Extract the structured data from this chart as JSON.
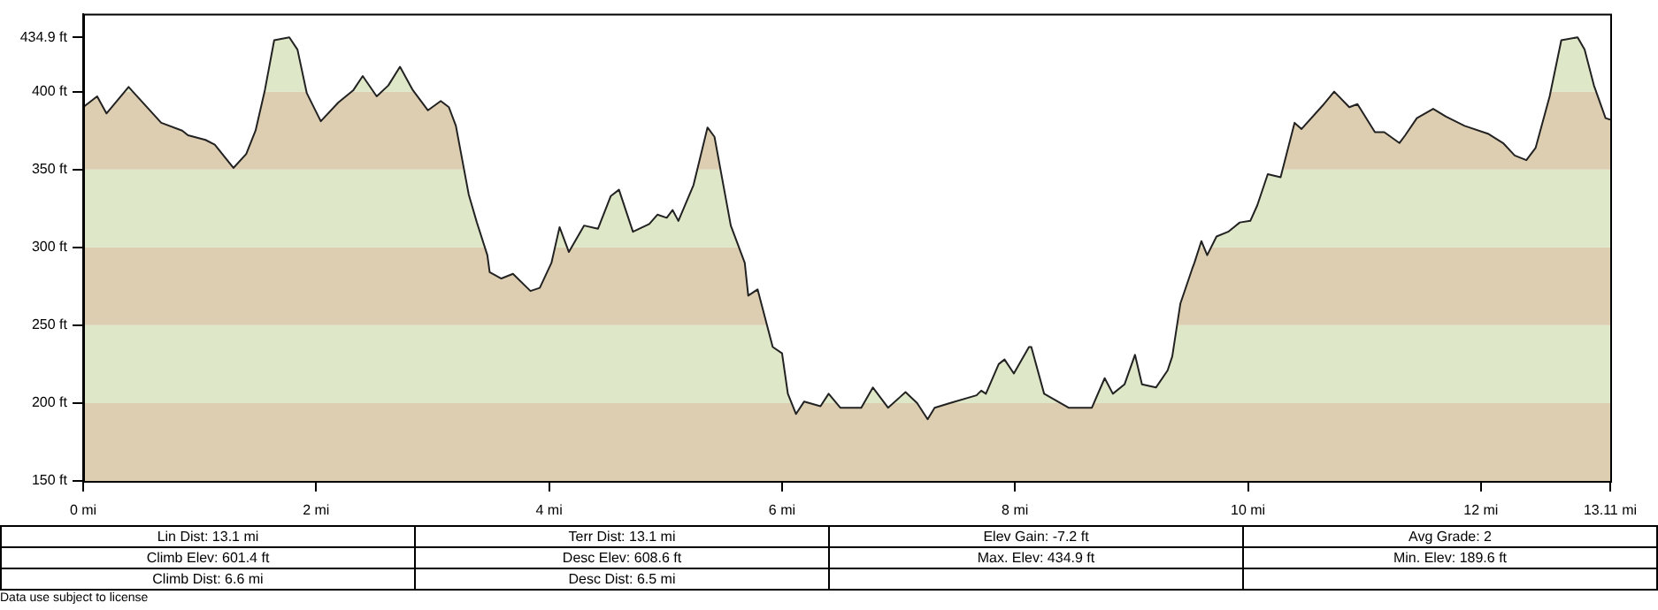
{
  "chart_data": {
    "type": "area",
    "x": [
      0,
      0.12,
      0.2,
      0.39,
      0.67,
      0.85,
      0.9,
      1.05,
      1.13,
      1.29,
      1.4,
      1.48,
      1.56,
      1.64,
      1.77,
      1.84,
      1.92,
      2.04,
      2.19,
      2.32,
      2.4,
      2.52,
      2.62,
      2.72,
      2.83,
      2.96,
      3.07,
      3.14,
      3.2,
      3.31,
      3.38,
      3.47,
      3.49,
      3.59,
      3.69,
      3.84,
      3.92,
      4.02,
      4.09,
      4.17,
      4.3,
      4.42,
      4.53,
      4.6,
      4.72,
      4.86,
      4.93,
      5.01,
      5.06,
      5.11,
      5.24,
      5.36,
      5.42,
      5.56,
      5.68,
      5.71,
      5.79,
      5.92,
      6,
      6.05,
      6.12,
      6.19,
      6.33,
      6.4,
      6.5,
      6.68,
      6.78,
      6.91,
      7.06,
      7.16,
      7.25,
      7.31,
      7.44,
      7.67,
      7.71,
      7.75,
      7.86,
      7.91,
      7.99,
      8.12,
      8.14,
      8.25,
      8.46,
      8.66,
      8.77,
      8.84,
      8.94,
      9.03,
      9.09,
      9.21,
      9.31,
      9.35,
      9.42,
      9.52,
      9.54,
      9.6,
      9.65,
      9.73,
      9.83,
      9.93,
      10.02,
      10.08,
      10.17,
      10.28,
      10.4,
      10.46,
      10.64,
      10.74,
      10.87,
      10.94,
      11.09,
      11.17,
      11.3,
      11.35,
      11.45,
      11.59,
      11.7,
      11.86,
      12.06,
      12.19,
      12.29,
      12.39,
      12.47,
      12.59,
      12.69,
      12.83,
      12.89,
      12.97,
      13.07,
      13.11
    ],
    "series": [
      {
        "color": "#222222",
        "values": [
          390,
          397,
          386,
          403,
          380,
          375,
          372,
          369,
          366,
          351,
          360,
          375,
          401,
          433,
          434.9,
          427,
          399,
          381,
          393,
          401,
          410,
          397,
          404,
          416,
          401,
          388,
          394,
          390,
          378,
          334,
          316,
          295,
          284,
          280,
          283,
          272,
          274,
          290,
          313,
          297,
          314,
          312,
          333,
          337,
          310,
          315,
          321,
          319,
          324,
          317,
          340,
          377,
          371,
          314,
          290,
          269,
          273,
          236,
          232,
          206,
          193,
          201,
          198,
          206,
          197,
          197,
          210,
          197,
          207,
          200,
          189.6,
          197,
          200,
          205,
          208,
          206,
          225,
          228,
          219,
          236,
          236,
          206,
          197,
          197,
          216,
          206,
          212,
          231,
          212,
          210,
          221,
          230,
          264,
          286,
          290,
          304,
          295,
          307,
          310,
          316,
          317,
          327,
          347,
          345,
          380,
          376,
          391,
          400,
          390,
          392,
          374,
          374,
          367,
          372,
          383,
          389,
          384,
          378,
          373,
          367,
          359,
          356,
          364,
          397,
          433,
          434.9,
          427,
          404,
          383,
          382
        ]
      }
    ],
    "xlim": [
      0,
      13.11
    ],
    "xticks": [
      {
        "value": 0,
        "label": "0 mi"
      },
      {
        "value": 2,
        "label": "2 mi"
      },
      {
        "value": 4,
        "label": "4 mi"
      },
      {
        "value": 6,
        "label": "6 mi"
      },
      {
        "value": 8,
        "label": "8 mi"
      },
      {
        "value": 10,
        "label": "10 mi"
      },
      {
        "value": 12,
        "label": "12 mi"
      },
      {
        "value": 13.11,
        "label": "13.11 mi"
      }
    ],
    "ylim": [
      150,
      450
    ],
    "yticks": [
      {
        "value": 150,
        "label": "150 ft"
      },
      {
        "value": 200,
        "label": "200 ft"
      },
      {
        "value": 250,
        "label": "250 ft"
      },
      {
        "value": 300,
        "label": "300 ft"
      },
      {
        "value": 350,
        "label": "350 ft"
      },
      {
        "value": 400,
        "label": "400 ft"
      },
      {
        "value": 434.9,
        "label": "434.9 ft"
      }
    ],
    "bands": [
      {
        "axis": "y",
        "from": 150,
        "to": 200,
        "color": "#e6d6b8"
      },
      {
        "axis": "y",
        "from": 200,
        "to": 250,
        "color": "#e7f0cf"
      },
      {
        "axis": "y",
        "from": 250,
        "to": 300,
        "color": "#e6d6b8"
      },
      {
        "axis": "y",
        "from": 300,
        "to": 350,
        "color": "#e7f0cf"
      },
      {
        "axis": "y",
        "from": 350,
        "to": 400,
        "color": "#e6d6b8"
      },
      {
        "axis": "y",
        "from": 400,
        "to": 450,
        "color": "#e7f0cf"
      }
    ],
    "annotations": [
      "Lin Dist: 13.1 mi",
      "Terr Dist: 13.1 mi",
      "Elev Gain: -7.2 ft",
      "Avg Grade: 2",
      "Climb Elev: 601.4 ft",
      "Desc Elev: 608.6 ft",
      "Max. Elev: 434.9 ft",
      "Min. Elev: 189.6 ft",
      "Climb Dist: 6.6 mi",
      "Desc Dist: 6.5 mi",
      "Data use subject to license"
    ],
    "grid": false,
    "legend": false,
    "marker": "none",
    "line_style": "solid"
  }
}
